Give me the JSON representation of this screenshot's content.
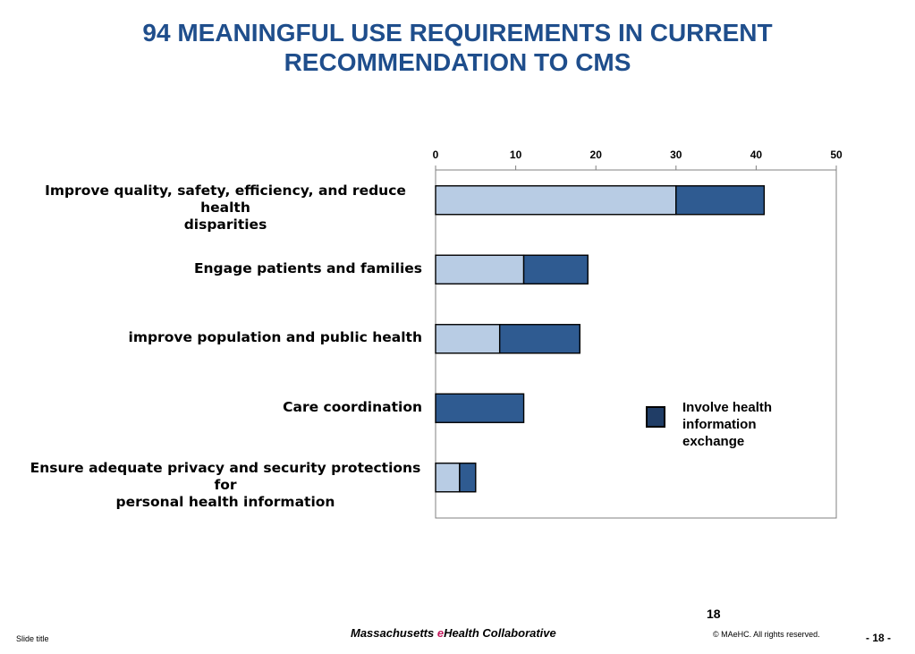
{
  "slide": {
    "title_line1": "94 MEANINGFUL USE REQUIREMENTS IN CURRENT",
    "title_line2": "RECOMMENDATION TO CMS",
    "page_number": "18",
    "footer_left": "Slide title",
    "footer_brand_pre": "Massachusetts ",
    "footer_brand_accent": "e",
    "footer_brand_post": "Health Collaborative",
    "footer_copyright": "© MAeHC.  All rights reserved.",
    "footer_page": "- 18 -"
  },
  "legend": {
    "label_line1": "Involve health",
    "label_line2": "information",
    "label_line3": "exchange",
    "color": "#203d66"
  },
  "chart_data": {
    "type": "bar",
    "orientation": "horizontal",
    "stacked": true,
    "categories": [
      [
        "Improve quality, safety, efficiency, and reduce health",
        "disparities"
      ],
      [
        "Engage patients and families"
      ],
      [
        "improve population and public health"
      ],
      [
        "Care coordination"
      ],
      [
        "Ensure adequate privacy and security protections for",
        "personal health information"
      ]
    ],
    "series": [
      {
        "values": [
          30,
          11,
          8,
          0,
          3
        ],
        "color": "#b8cce4"
      },
      {
        "values": [
          11,
          8,
          10,
          11,
          2
        ],
        "color": "#2f5b91"
      }
    ],
    "xlim": [
      0,
      50
    ],
    "xticks": [
      0,
      10,
      20,
      30,
      40,
      50
    ],
    "x_axis_position": "top",
    "grid": false,
    "legend_position": "right"
  }
}
